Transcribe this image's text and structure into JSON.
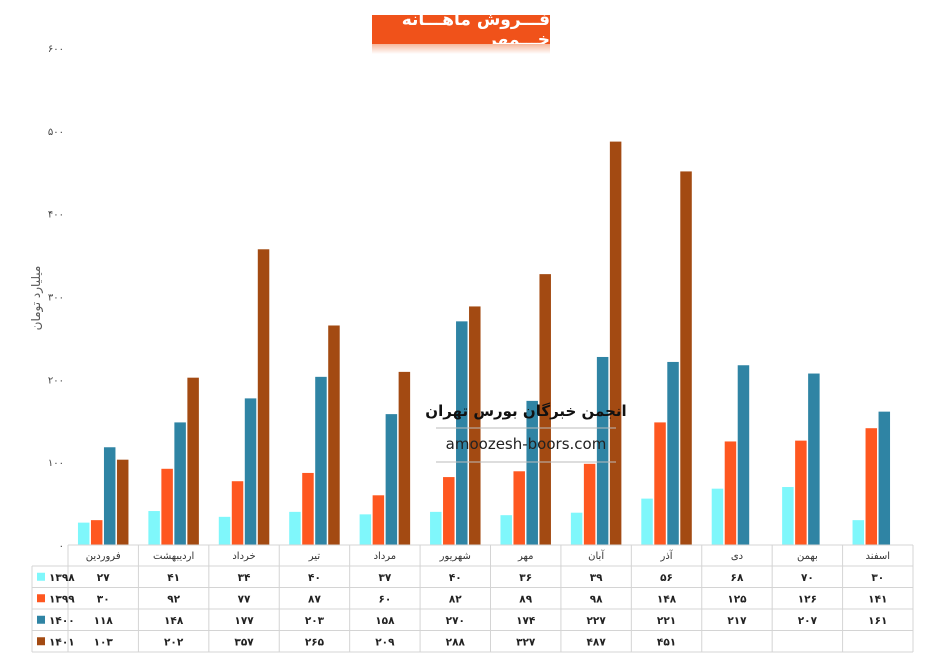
{
  "chart_data": {
    "type": "bar",
    "title": "فـــروش ماهـــانه خـــمهر",
    "ylabel": "میلیارد تومان",
    "ylim": [
      0,
      600
    ],
    "yticks": [
      "۰",
      "۱۰۰",
      "۲۰۰",
      "۳۰۰",
      "۴۰۰",
      "۵۰۰",
      "۶۰۰"
    ],
    "ytick_values": [
      0,
      100,
      200,
      300,
      400,
      500,
      600
    ],
    "categories": [
      "فروردین",
      "اردیبهشت",
      "خرداد",
      "تیر",
      "مرداد",
      "شهریور",
      "مهر",
      "آبان",
      "آذر",
      "دی",
      "بهمن",
      "اسفند"
    ],
    "series": [
      {
        "name": "۱۳۹۸",
        "color": "#7ff7fb",
        "values": [
          27,
          41,
          34,
          40,
          37,
          40,
          36,
          39,
          56,
          68,
          70,
          30
        ],
        "labels": [
          "۲۷",
          "۴۱",
          "۳۴",
          "۴۰",
          "۳۷",
          "۴۰",
          "۳۶",
          "۳۹",
          "۵۶",
          "۶۸",
          "۷۰",
          "۳۰"
        ]
      },
      {
        "name": "۱۳۹۹",
        "color": "#fe5720",
        "values": [
          30,
          92,
          77,
          87,
          60,
          82,
          89,
          98,
          148,
          125,
          126,
          141
        ],
        "labels": [
          "۳۰",
          "۹۲",
          "۷۷",
          "۸۷",
          "۶۰",
          "۸۲",
          "۸۹",
          "۹۸",
          "۱۴۸",
          "۱۲۵",
          "۱۲۶",
          "۱۴۱"
        ]
      },
      {
        "name": "۱۴۰۰",
        "color": "#2f84a4",
        "values": [
          118,
          148,
          177,
          203,
          158,
          270,
          174,
          227,
          221,
          217,
          207,
          161
        ],
        "labels": [
          "۱۱۸",
          "۱۴۸",
          "۱۷۷",
          "۲۰۳",
          "۱۵۸",
          "۲۷۰",
          "۱۷۴",
          "۲۲۷",
          "۲۲۱",
          "۲۱۷",
          "۲۰۷",
          "۱۶۱"
        ]
      },
      {
        "name": "۱۴۰۱",
        "color": "#a34a12",
        "values": [
          103,
          202,
          357,
          265,
          209,
          288,
          327,
          487,
          451,
          null,
          null,
          null
        ],
        "labels": [
          "۱۰۳",
          "۲۰۲",
          "۳۵۷",
          "۲۶۵",
          "۲۰۹",
          "۲۸۸",
          "۳۲۷",
          "۴۸۷",
          "۴۵۱",
          "",
          "",
          ""
        ]
      }
    ],
    "grid": false,
    "legend": "data-table-left"
  },
  "watermark": {
    "title": "انجمن خبرگان بورس تهران",
    "url": "amoozesh-boors.com"
  }
}
